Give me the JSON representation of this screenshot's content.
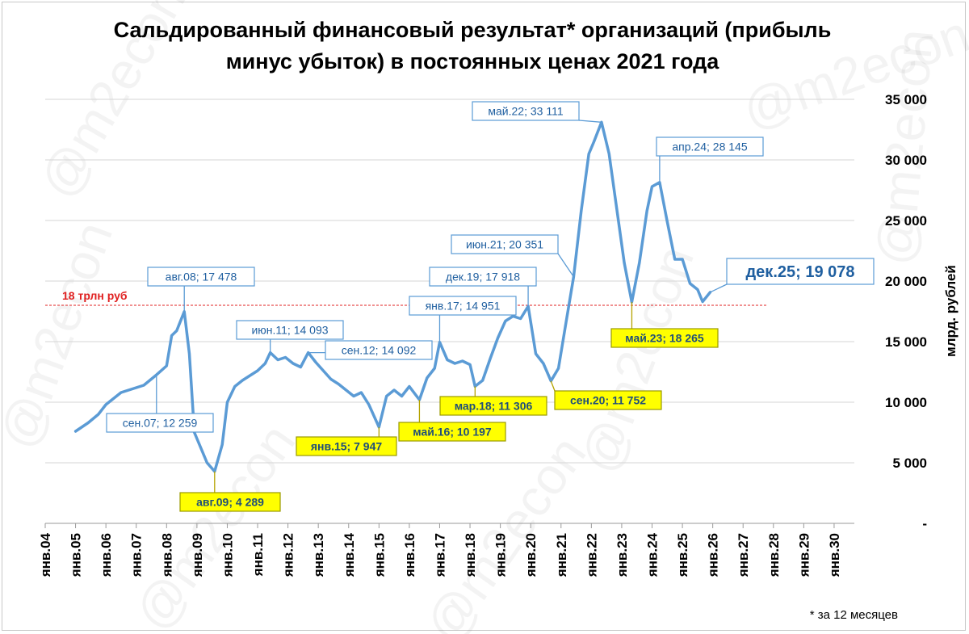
{
  "chart_data": {
    "type": "line",
    "title_lines": [
      "Сальдированный финансовый результат* организаций (прибыль",
      "минус убыток) в постоянных ценах 2021 года"
    ],
    "ylabel": "млрд. рублей",
    "ylim": [
      0,
      35000
    ],
    "y_ticks": [
      "-",
      "5 000",
      "10 000",
      "15 000",
      "20 000",
      "25 000",
      "30 000",
      "35 000"
    ],
    "x_ticks": [
      "янв.04",
      "янв.05",
      "янв.06",
      "янв.07",
      "янв.08",
      "янв.09",
      "янв.10",
      "янв.11",
      "янв.12",
      "янв.13",
      "янв.14",
      "янв.15",
      "янв.16",
      "янв.17",
      "янв.18",
      "янв.19",
      "янв.20",
      "янв.21",
      "янв.22",
      "янв.23",
      "янв.24",
      "янв.25",
      "янв.26",
      "янв.27",
      "янв.28",
      "янв.29",
      "янв.30"
    ],
    "x_range": [
      "2004-01",
      "2030-09"
    ],
    "grid": true,
    "color": "#5b9bd5",
    "reference_line": {
      "value": 18000,
      "label": "18 трлн руб",
      "color": "#e02020"
    },
    "footnote": "* за 12 месяцев",
    "series": [
      {
        "points": [
          [
            "2005-01",
            7600
          ],
          [
            "2005-06",
            8300
          ],
          [
            "2005-10",
            9000
          ],
          [
            "2006-01",
            9800
          ],
          [
            "2006-04",
            10300
          ],
          [
            "2006-07",
            10800
          ],
          [
            "2006-10",
            11000
          ],
          [
            "2007-01",
            11200
          ],
          [
            "2007-04",
            11400
          ],
          [
            "2007-09",
            12259
          ],
          [
            "2008-01",
            13000
          ],
          [
            "2008-03",
            15500
          ],
          [
            "2008-05",
            15900
          ],
          [
            "2008-08",
            17478
          ],
          [
            "2008-10",
            14000
          ],
          [
            "2008-12",
            7500
          ],
          [
            "2009-02",
            6500
          ],
          [
            "2009-05",
            5000
          ],
          [
            "2009-08",
            4289
          ],
          [
            "2009-11",
            6500
          ],
          [
            "2010-01",
            10000
          ],
          [
            "2010-04",
            11300
          ],
          [
            "2010-07",
            11800
          ],
          [
            "2010-10",
            12200
          ],
          [
            "2011-01",
            12600
          ],
          [
            "2011-04",
            13200
          ],
          [
            "2011-06",
            14093
          ],
          [
            "2011-09",
            13500
          ],
          [
            "2011-12",
            13700
          ],
          [
            "2012-03",
            13200
          ],
          [
            "2012-06",
            12900
          ],
          [
            "2012-09",
            14092
          ],
          [
            "2012-12",
            13300
          ],
          [
            "2013-03",
            12600
          ],
          [
            "2013-06",
            11900
          ],
          [
            "2013-09",
            11500
          ],
          [
            "2013-12",
            11000
          ],
          [
            "2014-03",
            10500
          ],
          [
            "2014-06",
            10800
          ],
          [
            "2014-09",
            9800
          ],
          [
            "2015-01",
            7947
          ],
          [
            "2015-04",
            10500
          ],
          [
            "2015-07",
            11000
          ],
          [
            "2015-10",
            10500
          ],
          [
            "2016-01",
            11300
          ],
          [
            "2016-05",
            10197
          ],
          [
            "2016-08",
            12000
          ],
          [
            "2016-11",
            12800
          ],
          [
            "2017-01",
            14951
          ],
          [
            "2017-04",
            13500
          ],
          [
            "2017-07",
            13200
          ],
          [
            "2017-10",
            13400
          ],
          [
            "2018-01",
            13100
          ],
          [
            "2018-03",
            11306
          ],
          [
            "2018-06",
            11800
          ],
          [
            "2018-09",
            13600
          ],
          [
            "2018-12",
            15300
          ],
          [
            "2019-03",
            16700
          ],
          [
            "2019-06",
            17100
          ],
          [
            "2019-09",
            16900
          ],
          [
            "2019-12",
            17918
          ],
          [
            "2020-03",
            14000
          ],
          [
            "2020-06",
            13200
          ],
          [
            "2020-09",
            11752
          ],
          [
            "2020-12",
            12800
          ],
          [
            "2021-03",
            16600
          ],
          [
            "2021-06",
            20351
          ],
          [
            "2021-09",
            25800
          ],
          [
            "2021-12",
            30500
          ],
          [
            "2022-02",
            31500
          ],
          [
            "2022-05",
            33111
          ],
          [
            "2022-08",
            30500
          ],
          [
            "2022-11",
            26000
          ],
          [
            "2023-02",
            21500
          ],
          [
            "2023-05",
            18265
          ],
          [
            "2023-08",
            21500
          ],
          [
            "2023-11",
            25800
          ],
          [
            "2024-01",
            27800
          ],
          [
            "2024-04",
            28145
          ],
          [
            "2024-07",
            24900
          ],
          [
            "2024-10",
            21800
          ],
          [
            "2025-01",
            21800
          ],
          [
            "2025-04",
            19800
          ],
          [
            "2025-07",
            19300
          ],
          [
            "2025-09",
            18300
          ],
          [
            "2025-12",
            19078
          ]
        ]
      }
    ],
    "annotations": [
      {
        "date": "2007-09",
        "value": 12259,
        "text": "сен.07;  12 259",
        "style": "blue"
      },
      {
        "date": "2008-08",
        "value": 17478,
        "text": "авг.08;  17 478",
        "style": "blue"
      },
      {
        "date": "2009-08",
        "value": 4289,
        "text": "авг.09;  4 289",
        "style": "yellow"
      },
      {
        "date": "2011-06",
        "value": 14093,
        "text": "июн.11;  14 093",
        "style": "blue"
      },
      {
        "date": "2012-09",
        "value": 14092,
        "text": "сен.12;  14 092",
        "style": "blue"
      },
      {
        "date": "2015-01",
        "value": 7947,
        "text": "янв.15;  7 947",
        "style": "yellow"
      },
      {
        "date": "2016-05",
        "value": 10197,
        "text": "май.16;  10 197",
        "style": "yellow"
      },
      {
        "date": "2017-01",
        "value": 14951,
        "text": "янв.17;  14 951",
        "style": "blue"
      },
      {
        "date": "2018-03",
        "value": 11306,
        "text": "мар.18;  11 306",
        "style": "yellow"
      },
      {
        "date": "2019-12",
        "value": 17918,
        "text": "дек.19;  17 918",
        "style": "blue"
      },
      {
        "date": "2020-09",
        "value": 11752,
        "text": "сен.20;  11 752",
        "style": "yellow"
      },
      {
        "date": "2021-06",
        "value": 20351,
        "text": "июн.21;  20 351",
        "style": "blue"
      },
      {
        "date": "2022-05",
        "value": 33111,
        "text": "май.22;  33 111",
        "style": "blue"
      },
      {
        "date": "2023-05",
        "value": 18265,
        "text": "май.23;  18 265",
        "style": "yellow"
      },
      {
        "date": "2024-04",
        "value": 28145,
        "text": "апр.24;  28 145",
        "style": "blue"
      },
      {
        "date": "2025-12",
        "value": 19078,
        "text": "дек.25;  19 078",
        "style": "big"
      }
    ]
  }
}
